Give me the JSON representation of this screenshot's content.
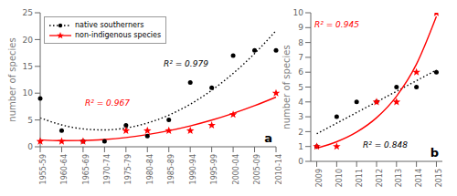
{
  "chart_data": [
    {
      "type": "scatter",
      "title": "a",
      "categories": [
        "1955-59",
        "1960-64",
        "1965-69",
        "1970-74",
        "1975-79",
        "1980-84",
        "1985-89",
        "1990-94",
        "1995-99",
        "2000-04",
        "2005-09",
        "2010-14"
      ],
      "y_label": "number of species",
      "ylim": [
        0,
        25
      ],
      "yticks": [
        0,
        5,
        10,
        15,
        20,
        25
      ],
      "legend": "upper left",
      "series": [
        {
          "name": "native southerners",
          "color": "black",
          "marker": "circle",
          "line_style": "dotted",
          "values": [
            9,
            3,
            1,
            1,
            4,
            2,
            5,
            12,
            11,
            17,
            18,
            18
          ],
          "fit": [
            5.387,
            4.082,
            3.333,
            3.141,
            3.506,
            4.428,
            5.907,
            7.943,
            10.536,
            13.686,
            17.393,
            21.657
          ]
        },
        {
          "name": "non-indigenous species",
          "color": "red",
          "marker": "star",
          "line_style": "solid",
          "values": [
            1,
            1,
            1,
            null,
            3,
            3,
            3,
            3,
            4,
            6,
            null,
            10
          ],
          "fit": [
            1.303,
            1.144,
            1.162,
            1.357,
            1.728,
            2.276,
            3.001,
            3.902,
            4.979,
            6.233,
            7.664,
            9.272
          ]
        }
      ],
      "annotations": [
        {
          "text": "R² = 0.967",
          "color": "red"
        },
        {
          "text": "R² = 0.979",
          "color": "black"
        }
      ]
    },
    {
      "type": "scatter",
      "title": "b",
      "x": [
        2009,
        2010,
        2011,
        2012,
        2013,
        2014,
        2015
      ],
      "xlim": [
        2008.7,
        2015.3
      ],
      "xticks": [
        2009,
        2010,
        2011,
        2012,
        2013,
        2014,
        2015
      ],
      "y_label": "number of species",
      "ylim": [
        0,
        10
      ],
      "yticks": [
        0,
        1,
        2,
        3,
        4,
        5,
        6,
        7,
        8,
        9,
        10
      ],
      "series": [
        {
          "color": "black",
          "marker": "circle",
          "line_style": "dotted",
          "values": [
            1,
            3,
            4,
            4,
            5,
            5,
            6
          ],
          "fit": [
            1.857,
            2.571,
            3.286,
            4,
            4.714,
            5.429,
            6.143
          ]
        },
        {
          "color": "red",
          "marker": "star",
          "line_style": "solid",
          "values": [
            1,
            1,
            null,
            4,
            4,
            6,
            10
          ],
          "fit": [
            0.885,
            1.32,
            1.97,
            2.938,
            4.383,
            6.539,
            9.755
          ]
        }
      ],
      "annotations": [
        {
          "text": "R² = 0.848",
          "color": "black"
        },
        {
          "text": "R² = 0.945",
          "color": "red"
        }
      ]
    }
  ]
}
